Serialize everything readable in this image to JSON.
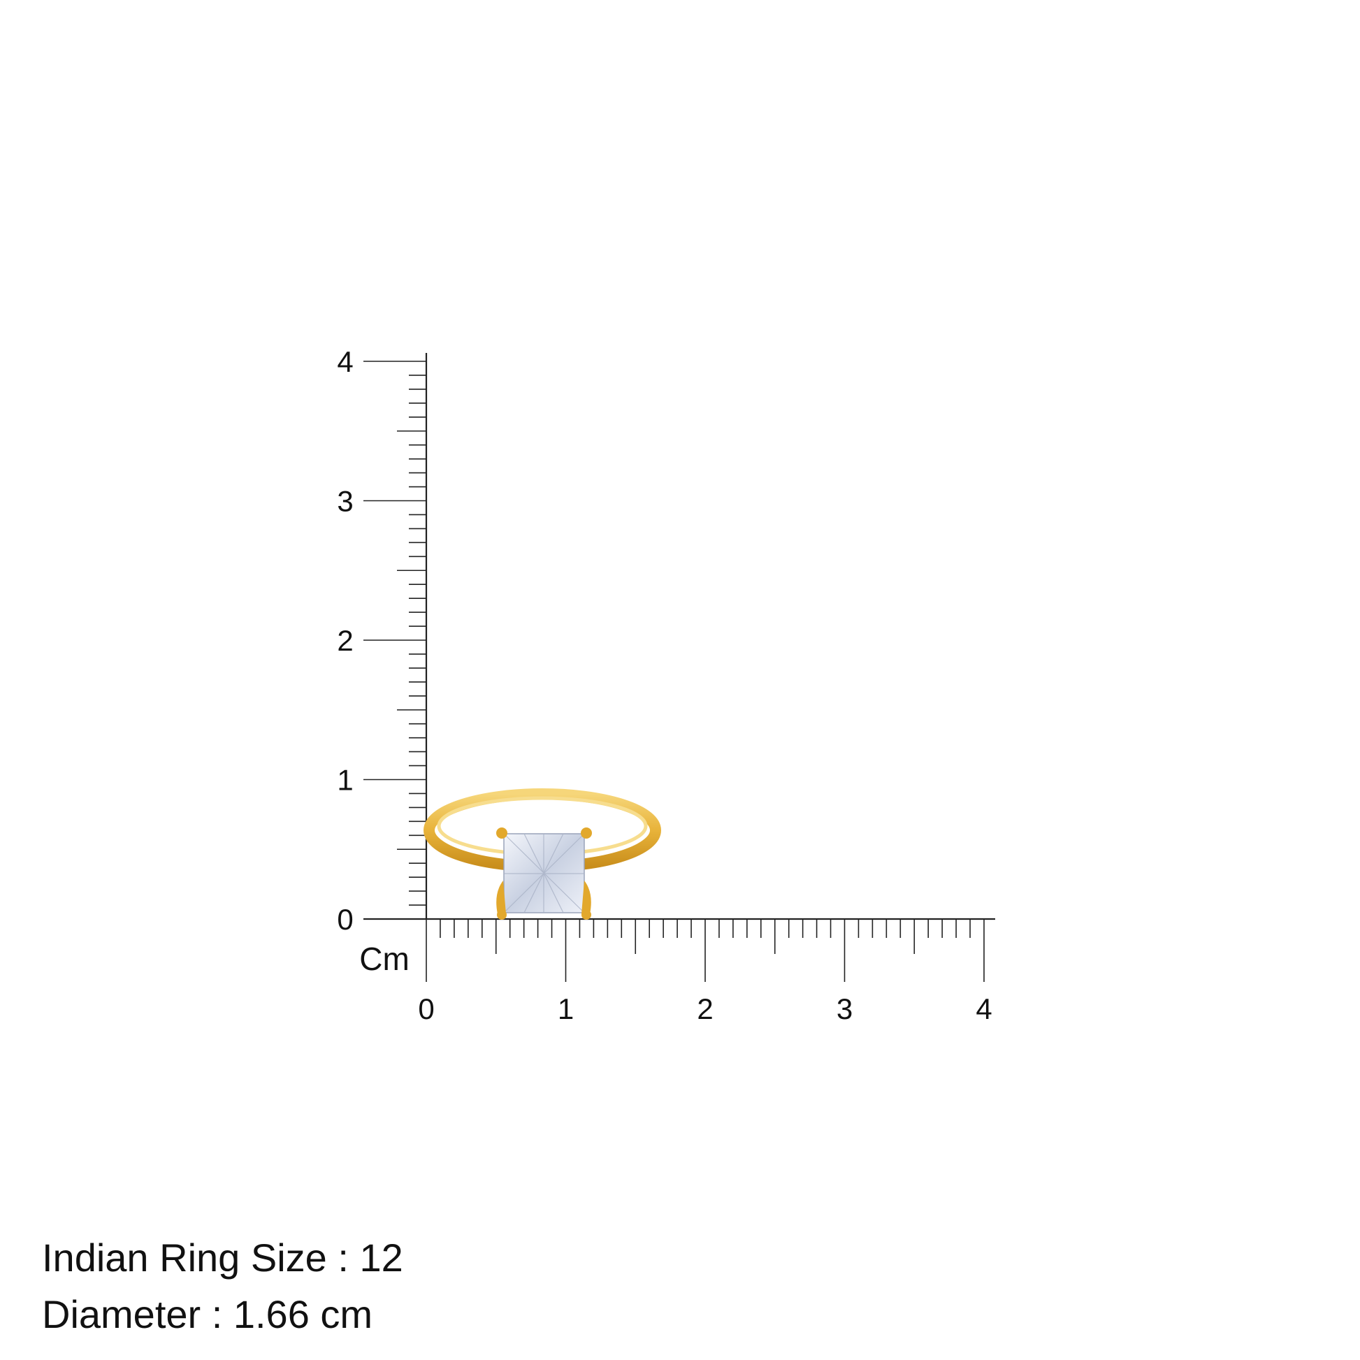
{
  "ruler": {
    "unit_label": "Cm",
    "x_ticks": [
      "0",
      "1",
      "2",
      "3",
      "4"
    ],
    "y_ticks": [
      "0",
      "1",
      "2",
      "3",
      "4"
    ],
    "range_cm": [
      0,
      4
    ],
    "minor_step_cm": 0.1
  },
  "product": {
    "image": "gold-solitaire-ring-radiant-cut-stone",
    "metal_color": "#E8B33A",
    "stone_color": "#E6EBF5"
  },
  "info": {
    "ring_size": "Indian Ring Size : 12",
    "diameter": "Diameter : 1.66 cm"
  }
}
